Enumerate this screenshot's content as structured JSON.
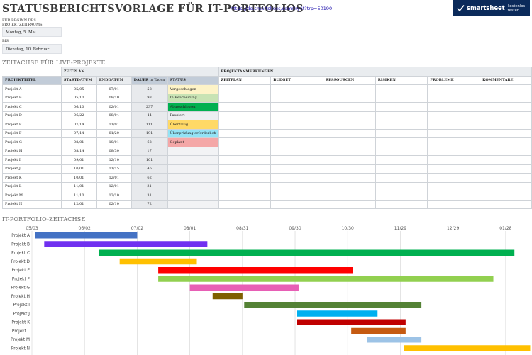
{
  "header": {
    "title": "STATUSBERICHTSVORLAGE FÜR IT-PORTFOLIOS",
    "link": "https://de.smartsheet.com/try-it?trp=50190",
    "brand_name": "smartsheet",
    "brand_cta": "kostenlos testen"
  },
  "period": {
    "start_label_line1": "FÜR BEGINN DES",
    "start_label_line2": "PROJEKTZEITRAUMS",
    "start_value": "Montag, 5. Mai",
    "end_label": "BIS",
    "end_value": "Dienstag, 10. Februar"
  },
  "table": {
    "section_title": "ZEITACHSE FÜR LIVE-PROJEKTE",
    "group_timeplan": "ZEITPLAN",
    "group_notes": "PROJEKTANMERKUNGEN",
    "col_title": "PROJEKTTITEL",
    "col_start": "STARTDATUM",
    "col_end": "ENDDATUM",
    "col_duration_bold": "DAUER",
    "col_duration_rest": " in Tagen",
    "col_status": "STATUS",
    "notes_cols": [
      "ZEITPLAN",
      "BUDGET",
      "RESSOURCEN",
      "RISIKEN",
      "PROBLEME",
      "KOMMENTARE"
    ],
    "rows": [
      {
        "name": "Projekt A",
        "start": "05/05",
        "end": "07/01",
        "duration": "58",
        "status": "Vorgeschlagen",
        "status_color": "#fdf3c7"
      },
      {
        "name": "Projekt B",
        "start": "05/10",
        "end": "08/10",
        "duration": "93",
        "status": "In Bearbeitung",
        "status_color": "#c8e3b4"
      },
      {
        "name": "Projekt C",
        "start": "06/10",
        "end": "02/01",
        "duration": "237",
        "status": "Abgeschlossen",
        "status_color": "#00b050"
      },
      {
        "name": "Projekt D",
        "start": "06/22",
        "end": "08/04",
        "duration": "44",
        "status": "Pausiert",
        "status_color": "#eceef1"
      },
      {
        "name": "Projekt E",
        "start": "07/14",
        "end": "11/01",
        "duration": "111",
        "status": "Überfällig",
        "status_color": "#ffd966"
      },
      {
        "name": "Projekt F",
        "start": "07/14",
        "end": "01/20",
        "duration": "191",
        "status": "Überprüfung erforderlich",
        "status_color": "#93e3f5"
      },
      {
        "name": "Projekt G",
        "start": "08/01",
        "end": "10/01",
        "duration": "62",
        "status": "Geplant",
        "status_color": "#f4a7a7"
      },
      {
        "name": "Projekt H",
        "start": "08/14",
        "end": "08/30",
        "duration": "17",
        "status": "",
        "status_color": ""
      },
      {
        "name": "Projekt I",
        "start": "09/01",
        "end": "12/10",
        "duration": "101",
        "status": "",
        "status_color": ""
      },
      {
        "name": "Projekt J",
        "start": "10/01",
        "end": "11/15",
        "duration": "46",
        "status": "",
        "status_color": ""
      },
      {
        "name": "Projekt K",
        "start": "10/01",
        "end": "12/01",
        "duration": "62",
        "status": "",
        "status_color": ""
      },
      {
        "name": "Projekt L",
        "start": "11/01",
        "end": "12/01",
        "duration": "31",
        "status": "",
        "status_color": ""
      },
      {
        "name": "Projekt M",
        "start": "11/10",
        "end": "12/10",
        "duration": "31",
        "status": "",
        "status_color": ""
      },
      {
        "name": "Projekt N",
        "start": "12/01",
        "end": "02/10",
        "duration": "72",
        "status": "",
        "status_color": ""
      }
    ]
  },
  "gantt": {
    "section_title": "IT-PORTFOLIO-ZEITACHSE",
    "chart_data": {
      "type": "bar",
      "orientation": "horizontal-gantt",
      "x_start": "05/03",
      "x_end": "02/10",
      "tick_labels": [
        "05/03",
        "06/02",
        "07/02",
        "08/01",
        "08/31",
        "09/30",
        "10/30",
        "11/29",
        "12/29",
        "01/28"
      ],
      "tick_days": [
        0,
        30,
        60,
        90,
        120,
        150,
        180,
        210,
        240,
        270
      ],
      "x_max_days": 283,
      "grid": true,
      "bars": [
        {
          "label": "Projekt A",
          "start_day": 2,
          "duration": 58,
          "color": "#4472c4"
        },
        {
          "label": "Projekt B",
          "start_day": 7,
          "duration": 93,
          "color": "#7030f0"
        },
        {
          "label": "Projekt C",
          "start_day": 38,
          "duration": 237,
          "color": "#00b050"
        },
        {
          "label": "Projekt D",
          "start_day": 50,
          "duration": 44,
          "color": "#ffc000"
        },
        {
          "label": "Projekt E",
          "start_day": 72,
          "duration": 111,
          "color": "#ff0000"
        },
        {
          "label": "Projekt F",
          "start_day": 72,
          "duration": 191,
          "color": "#92d050"
        },
        {
          "label": "Projekt G",
          "start_day": 90,
          "duration": 62,
          "color": "#e75fb5"
        },
        {
          "label": "Projekt H",
          "start_day": 103,
          "duration": 17,
          "color": "#7f6000"
        },
        {
          "label": "Projekt I",
          "start_day": 121,
          "duration": 101,
          "color": "#548235"
        },
        {
          "label": "Projekt J",
          "start_day": 151,
          "duration": 46,
          "color": "#00b0f0"
        },
        {
          "label": "Projekt K",
          "start_day": 151,
          "duration": 62,
          "color": "#c00000"
        },
        {
          "label": "Projekt L",
          "start_day": 182,
          "duration": 31,
          "color": "#c55a11"
        },
        {
          "label": "Projekt M",
          "start_day": 191,
          "duration": 31,
          "color": "#9dc3e6"
        },
        {
          "label": "Projekt N",
          "start_day": 212,
          "duration": 72,
          "color": "#ffc000"
        }
      ]
    }
  }
}
